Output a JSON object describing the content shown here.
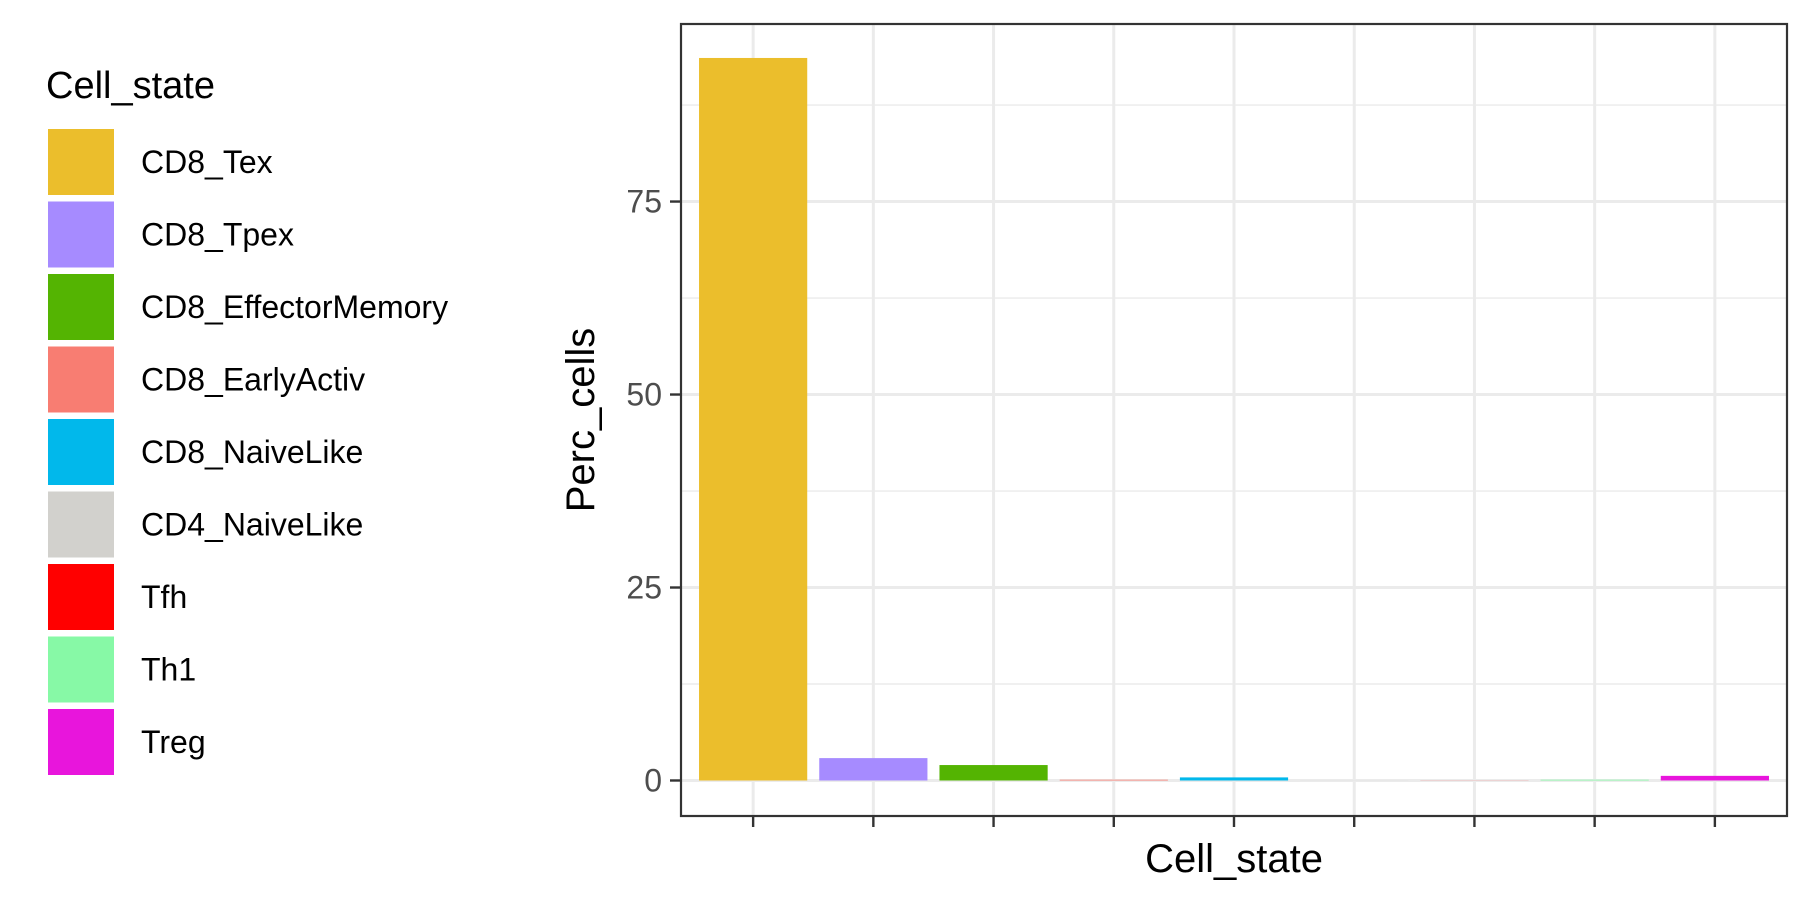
{
  "chart_data": {
    "type": "bar",
    "title": "",
    "xlabel": "Cell_state",
    "ylabel": "Perc_cells",
    "ylim": [
      -4.6,
      98
    ],
    "yticks": [
      0,
      25,
      50,
      75
    ],
    "grid": true,
    "legend": {
      "title": "Cell_state",
      "placement": "left"
    },
    "categories": [
      "CD8_Tex",
      "CD8_Tpex",
      "CD8_EffectorMemory",
      "CD8_EarlyActiv",
      "CD8_NaiveLike",
      "CD4_NaiveLike",
      "Tfh",
      "Th1",
      "Treg"
    ],
    "values": [
      93.6,
      2.9,
      2.0,
      0.1,
      0.4,
      0.0,
      0.0,
      0.1,
      0.6
    ],
    "colors": [
      "#EBBE2C",
      "#A68BFF",
      "#54B402",
      "#F87D72",
      "#01B8EB",
      "#D2D1CD",
      "#FF0000",
      "#87F9A6",
      "#E815DC"
    ]
  }
}
